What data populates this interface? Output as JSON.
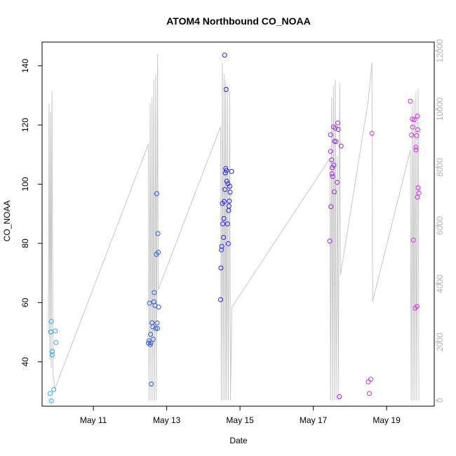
{
  "chart_data": {
    "type": "scatter",
    "title": "ATOM4 Northbound CO_NOAA",
    "xlabel": "Date",
    "ylabel": "CO_NOAA",
    "x_ticks": [
      {
        "label": "May 11",
        "day": 11
      },
      {
        "label": "May 13",
        "day": 13
      },
      {
        "label": "May 15",
        "day": 15
      },
      {
        "label": "May 17",
        "day": 17
      },
      {
        "label": "May 19",
        "day": 19
      }
    ],
    "xlim_days": [
      9.6,
      20.3
    ],
    "ylim": [
      25,
      148
    ],
    "y_ticks": [
      40,
      60,
      80,
      100,
      120,
      140
    ],
    "y2lim": [
      -200,
      12300
    ],
    "y2_ticks": [
      0,
      2000,
      4000,
      6000,
      8000,
      10000,
      12000
    ],
    "grid": false,
    "series": [
      {
        "color": "#29a9f0",
        "points": [
          [
            9.82,
            29.3
          ],
          [
            9.85,
            26.8
          ],
          [
            9.85,
            53.6
          ],
          [
            9.84,
            50.1
          ],
          [
            9.88,
            43.5
          ],
          [
            9.88,
            42.3
          ],
          [
            9.92,
            30.6
          ],
          [
            9.96,
            50.4
          ],
          [
            9.98,
            46.5
          ]
        ]
      },
      {
        "color": "#2f5ce8",
        "points": [
          [
            12.5,
            46.3
          ],
          [
            12.52,
            47.1
          ],
          [
            12.53,
            59.8
          ],
          [
            12.55,
            45.8
          ],
          [
            12.56,
            49.3
          ],
          [
            12.57,
            46.4
          ],
          [
            12.58,
            32.5
          ],
          [
            12.6,
            53.2
          ],
          [
            12.62,
            51.8
          ],
          [
            12.63,
            47.6
          ],
          [
            12.65,
            60.3
          ],
          [
            12.66,
            63.4
          ],
          [
            12.68,
            59.0
          ],
          [
            12.7,
            51.3
          ],
          [
            12.72,
            76.3
          ],
          [
            12.73,
            96.8
          ],
          [
            12.74,
            53.1
          ],
          [
            12.75,
            51.2
          ],
          [
            12.76,
            83.3
          ],
          [
            12.77,
            77.0
          ],
          [
            12.78,
            58.5
          ]
        ]
      },
      {
        "color": "#2626e6",
        "points": [
          [
            14.47,
            61.0
          ],
          [
            14.48,
            71.7
          ],
          [
            14.49,
            77.8
          ],
          [
            14.5,
            79.0
          ],
          [
            14.52,
            93.5
          ],
          [
            14.53,
            86.6
          ],
          [
            14.55,
            82.0
          ],
          [
            14.56,
            88.4
          ],
          [
            14.57,
            94.1
          ],
          [
            14.58,
            143.6
          ],
          [
            14.59,
            98.2
          ],
          [
            14.6,
            103.8
          ],
          [
            14.61,
            105.3
          ],
          [
            14.62,
            132.0
          ],
          [
            14.63,
            104.6
          ],
          [
            14.64,
            101.0
          ],
          [
            14.66,
            86.6
          ],
          [
            14.67,
            100.2
          ],
          [
            14.68,
            79.9
          ],
          [
            14.69,
            91.1
          ],
          [
            14.7,
            92.6
          ],
          [
            14.71,
            94.3
          ],
          [
            14.72,
            99.3
          ],
          [
            14.73,
            97.3
          ],
          [
            14.77,
            104.3
          ]
        ]
      },
      {
        "color": "#9a2be0",
        "points": [
          [
            17.45,
            80.8
          ],
          [
            17.47,
            116.7
          ],
          [
            17.47,
            111.1
          ],
          [
            17.48,
            92.4
          ],
          [
            17.5,
            108.2
          ],
          [
            17.51,
            103.5
          ],
          [
            17.52,
            105.6
          ],
          [
            17.53,
            102.6
          ],
          [
            17.55,
            119.4
          ],
          [
            17.56,
            106.4
          ],
          [
            17.57,
            97.4
          ],
          [
            17.58,
            114.5
          ],
          [
            17.6,
            118.9
          ],
          [
            17.62,
            114.4
          ],
          [
            17.65,
            100.6
          ],
          [
            17.67,
            120.7
          ],
          [
            17.68,
            118.5
          ],
          [
            17.71,
            28.2
          ],
          [
            17.76,
            112.9
          ]
        ]
      },
      {
        "color": "#d62ae6",
        "points": [
          [
            18.5,
            33.2
          ],
          [
            18.53,
            29.3
          ],
          [
            18.57,
            34.1
          ],
          [
            18.6,
            117.2
          ],
          [
            19.65,
            128.0
          ],
          [
            19.68,
            116.6
          ],
          [
            19.7,
            122.0
          ],
          [
            19.71,
            119.3
          ],
          [
            19.73,
            81.1
          ],
          [
            19.75,
            121.8
          ],
          [
            19.78,
            58.1
          ],
          [
            19.8,
            112.5
          ],
          [
            19.8,
            111.6
          ],
          [
            19.82,
            116.4
          ],
          [
            19.83,
            58.7
          ],
          [
            19.84,
            123.0
          ],
          [
            19.84,
            95.6
          ],
          [
            19.85,
            118.4
          ],
          [
            19.86,
            98.8
          ],
          [
            19.88,
            97.0
          ]
        ]
      }
    ],
    "line_series": {
      "color": "#c8c8c8",
      "points": [
        [
          9.77,
          2300
        ],
        [
          9.79,
          10200
        ],
        [
          9.81,
          1400
        ],
        [
          9.83,
          9900
        ],
        [
          9.85,
          1100
        ],
        [
          9.87,
          10600
        ],
        [
          9.9,
          900
        ],
        [
          9.95,
          400
        ],
        [
          12.5,
          8800
        ],
        [
          12.52,
          0
        ],
        [
          12.55,
          10200
        ],
        [
          12.57,
          0
        ],
        [
          12.6,
          10400
        ],
        [
          12.62,
          0
        ],
        [
          12.65,
          11000
        ],
        [
          12.67,
          0
        ],
        [
          12.7,
          11200
        ],
        [
          12.72,
          0
        ],
        [
          12.75,
          11900
        ],
        [
          12.77,
          3800
        ],
        [
          14.47,
          9400
        ],
        [
          14.49,
          0
        ],
        [
          14.52,
          11600
        ],
        [
          14.54,
          0
        ],
        [
          14.57,
          11200
        ],
        [
          14.59,
          0
        ],
        [
          14.61,
          11000
        ],
        [
          14.63,
          0
        ],
        [
          14.66,
          10800
        ],
        [
          14.68,
          0
        ],
        [
          14.72,
          10600
        ],
        [
          14.74,
          0
        ],
        [
          14.78,
          3200
        ],
        [
          17.45,
          8300
        ],
        [
          17.47,
          0
        ],
        [
          17.5,
          10400
        ],
        [
          17.52,
          0
        ],
        [
          17.55,
          10800
        ],
        [
          17.57,
          0
        ],
        [
          17.6,
          11000
        ],
        [
          17.62,
          0
        ],
        [
          17.66,
          8400
        ],
        [
          17.68,
          0
        ],
        [
          17.72,
          10900
        ],
        [
          17.74,
          4300
        ],
        [
          18.5,
          10300
        ],
        [
          18.6,
          11600
        ],
        [
          18.62,
          3400
        ],
        [
          19.65,
          8600
        ],
        [
          19.67,
          0
        ],
        [
          19.7,
          10100
        ],
        [
          19.72,
          0
        ],
        [
          19.75,
          10300
        ],
        [
          19.77,
          0
        ],
        [
          19.8,
          10600
        ],
        [
          19.82,
          0
        ],
        [
          19.86,
          10700
        ],
        [
          19.88,
          0
        ]
      ]
    }
  }
}
